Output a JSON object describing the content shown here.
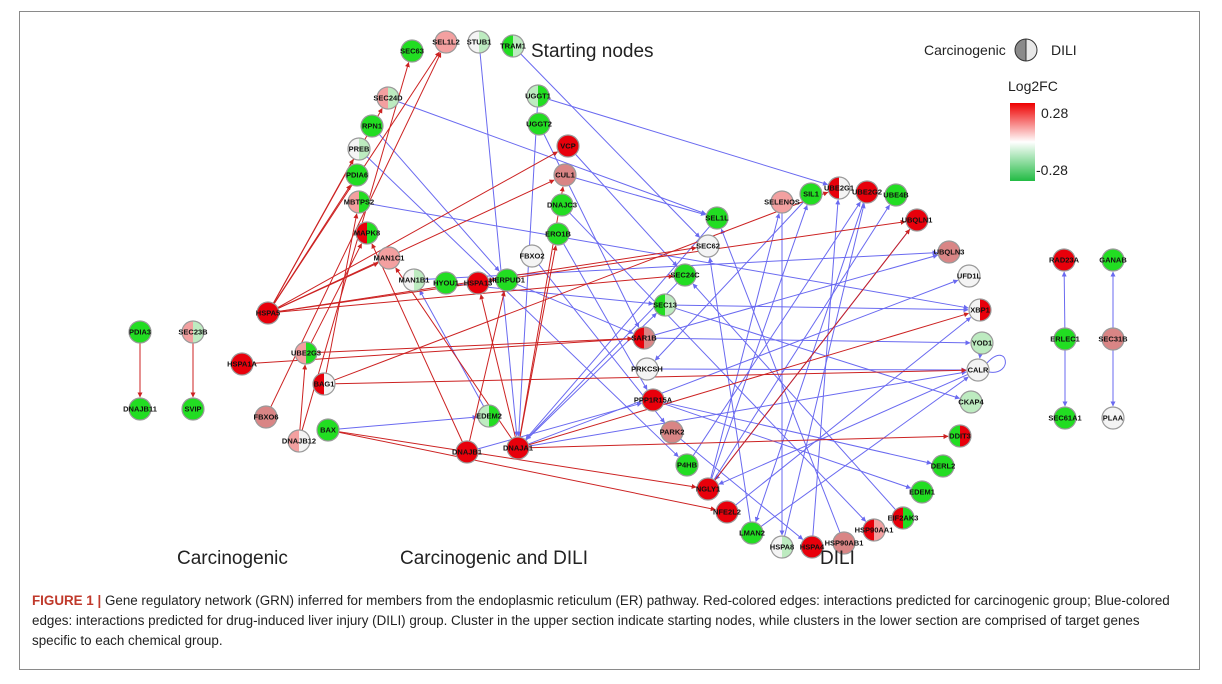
{
  "titles": {
    "starting": "Starting nodes",
    "carcinogenic": "Carcinogenic",
    "both": "Carcinogenic and DILI",
    "dili": "DILI"
  },
  "legend": {
    "group_left": "Carcinogenic",
    "group_right": "DILI",
    "title": "Log2FC",
    "max": "0.28",
    "min": "-0.28"
  },
  "caption": {
    "lead": "FIGURE 1 |",
    "text": " Gene regulatory network (GRN) inferred for members from the endoplasmic reticulum (ER) pathway. Red-colored edges: interactions predicted for carcinogenic group; Blue-colored edges: interactions predicted for drug-induced liver injury (DILI) group. Cluster in the upper section indicate starting nodes, while clusters in the lower section are comprised of target genes specific to each chemical group."
  },
  "colors": {
    "red": "#e8000b",
    "lightred": "#f3a0a0",
    "pink": "#d98585",
    "green": "#22dd22",
    "lightgreen": "#bdebc0",
    "white": "#f4f4f4",
    "carcinogenic_edge": "#cc2222",
    "dili_edge": "#6a6af0"
  },
  "nodes": [
    {
      "id": "SEC63",
      "left": "green",
      "right": "green"
    },
    {
      "id": "SEL1L2",
      "left": "lightred",
      "right": "lightred"
    },
    {
      "id": "STUB1",
      "left": "white",
      "right": "lightgreen"
    },
    {
      "id": "TRAM1",
      "left": "green",
      "right": "lightgreen"
    },
    {
      "id": "SEC24D",
      "left": "lightred",
      "right": "lightgreen"
    },
    {
      "id": "UGGT1",
      "left": "lightgreen",
      "right": "green"
    },
    {
      "id": "RPN1",
      "left": "green",
      "right": "green"
    },
    {
      "id": "UGGT2",
      "left": "green",
      "right": "green"
    },
    {
      "id": "PREB",
      "left": "white",
      "right": "lightgreen"
    },
    {
      "id": "VCP",
      "left": "red",
      "right": "red"
    },
    {
      "id": "PDIA6",
      "left": "green",
      "right": "green"
    },
    {
      "id": "CUL1",
      "left": "pink",
      "right": "pink"
    },
    {
      "id": "MBTPS2",
      "left": "lightred",
      "right": "green"
    },
    {
      "id": "DNAJC3",
      "left": "green",
      "right": "green"
    },
    {
      "id": "MAPK8",
      "left": "red",
      "right": "green"
    },
    {
      "id": "ERO1B",
      "left": "green",
      "right": "green"
    },
    {
      "id": "FBXO2",
      "left": "white",
      "right": "white"
    },
    {
      "id": "MAN1C1",
      "left": "lightred",
      "right": "lightred"
    },
    {
      "id": "MAN1B1",
      "left": "white",
      "right": "lightgreen"
    },
    {
      "id": "HYOU1",
      "left": "green",
      "right": "green"
    },
    {
      "id": "HSPA13",
      "left": "red",
      "right": "red"
    },
    {
      "id": "HERPUD1",
      "left": "green",
      "right": "green"
    },
    {
      "id": "HSPA5",
      "left": "red",
      "right": "red"
    },
    {
      "id": "UBE2G3",
      "left": "lightred",
      "right": "green"
    },
    {
      "id": "HSPA1A",
      "left": "red",
      "right": "red"
    },
    {
      "id": "BAG1",
      "left": "red",
      "right": "white"
    },
    {
      "id": "FBXO6",
      "left": "pink",
      "right": "pink"
    },
    {
      "id": "DNAJB12",
      "left": "lightred",
      "right": "white"
    },
    {
      "id": "BAX",
      "left": "green",
      "right": "green"
    },
    {
      "id": "EDEM2",
      "left": "lightgreen",
      "right": "green"
    },
    {
      "id": "DNAJB1",
      "left": "red",
      "right": "red"
    },
    {
      "id": "DNAJA1",
      "left": "red",
      "right": "red"
    },
    {
      "id": "PDIA3",
      "left": "green",
      "right": "green"
    },
    {
      "id": "DNAJB11",
      "left": "green",
      "right": "green"
    },
    {
      "id": "SEC23B",
      "left": "lightred",
      "right": "lightgreen"
    },
    {
      "id": "SVIP",
      "left": "green",
      "right": "green"
    },
    {
      "id": "SELENOS",
      "left": "lightred",
      "right": "lightred"
    },
    {
      "id": "SIL1",
      "left": "green",
      "right": "green"
    },
    {
      "id": "UBE2G1",
      "left": "red",
      "right": "white"
    },
    {
      "id": "UBE2G2",
      "left": "red",
      "right": "red"
    },
    {
      "id": "UBE4B",
      "left": "green",
      "right": "green"
    },
    {
      "id": "UBQLN1",
      "left": "red",
      "right": "red"
    },
    {
      "id": "SEL1L",
      "left": "green",
      "right": "green"
    },
    {
      "id": "SEC62",
      "left": "white",
      "right": "white"
    },
    {
      "id": "UBQLN3",
      "left": "pink",
      "right": "pink"
    },
    {
      "id": "SEC24C",
      "left": "green",
      "right": "green"
    },
    {
      "id": "UFD1L",
      "left": "white",
      "right": "white"
    },
    {
      "id": "SEC13",
      "left": "green",
      "right": "lightgreen"
    },
    {
      "id": "XBP1",
      "left": "white",
      "right": "red"
    },
    {
      "id": "SAR1B",
      "left": "red",
      "right": "pink"
    },
    {
      "id": "YOD1",
      "left": "lightgreen",
      "right": "lightgreen"
    },
    {
      "id": "PRKCSH",
      "left": "white",
      "right": "white"
    },
    {
      "id": "CALR",
      "left": "white",
      "right": "white"
    },
    {
      "id": "PPP1R15A",
      "left": "red",
      "right": "red"
    },
    {
      "id": "CKAP4",
      "left": "lightgreen",
      "right": "lightgreen"
    },
    {
      "id": "PARK2",
      "left": "pink",
      "right": "pink"
    },
    {
      "id": "DDIT3",
      "left": "green",
      "right": "red"
    },
    {
      "id": "P4HB",
      "left": "green",
      "right": "green"
    },
    {
      "id": "DERL2",
      "left": "green",
      "right": "green"
    },
    {
      "id": "NGLY1",
      "left": "red",
      "right": "red"
    },
    {
      "id": "EDEM1",
      "left": "green",
      "right": "green"
    },
    {
      "id": "NFE2L2",
      "left": "red",
      "right": "red"
    },
    {
      "id": "EIF2AK3",
      "left": "red",
      "right": "green"
    },
    {
      "id": "LMAN2",
      "left": "green",
      "right": "green"
    },
    {
      "id": "HSP90AA1",
      "left": "red",
      "right": "lightred"
    },
    {
      "id": "HSPA8",
      "left": "white",
      "right": "lightgreen"
    },
    {
      "id": "HSPA4",
      "left": "red",
      "right": "red"
    },
    {
      "id": "HSP90AB1",
      "left": "pink",
      "right": "pink"
    },
    {
      "id": "RAD23A",
      "left": "red",
      "right": "red"
    },
    {
      "id": "GANAB",
      "left": "green",
      "right": "green"
    },
    {
      "id": "ERLEC1",
      "left": "green",
      "right": "green"
    },
    {
      "id": "SEC31B",
      "left": "pink",
      "right": "pink"
    },
    {
      "id": "SEC61A1",
      "left": "green",
      "right": "green"
    },
    {
      "id": "PLAA",
      "left": "white",
      "right": "white"
    }
  ],
  "edges_carcinogenic": [
    [
      "PDIA3",
      "DNAJB11"
    ],
    [
      "SEC23B",
      "SVIP"
    ],
    [
      "HSPA5",
      "SEL1L2"
    ],
    [
      "HSPA5",
      "CUL1"
    ],
    [
      "HSPA5",
      "VCP"
    ],
    [
      "HSPA5",
      "PREB"
    ],
    [
      "HSPA5",
      "PDIA6"
    ],
    [
      "HSPA5",
      "MAN1C1"
    ],
    [
      "HSPA5",
      "SEC24D"
    ],
    [
      "HSPA5",
      "UBQLN1"
    ],
    [
      "HSPA5",
      "SEC62"
    ],
    [
      "HSPA5",
      "SEC24C"
    ],
    [
      "UBE2G3",
      "MAPK8"
    ],
    [
      "UBE2G3",
      "SAR1B"
    ],
    [
      "BAG1",
      "MBTPS2"
    ],
    [
      "BAG1",
      "CALR"
    ],
    [
      "BAG1",
      "UBE2G1"
    ],
    [
      "DNAJB12",
      "SEC63"
    ],
    [
      "BAX",
      "NFE2L2"
    ],
    [
      "BAX",
      "NGLY1"
    ],
    [
      "DNAJA1",
      "MAN1C1"
    ],
    [
      "DNAJA1",
      "HSPA13"
    ],
    [
      "DNAJA1",
      "ERO1B"
    ],
    [
      "DNAJA1",
      "XBP1"
    ],
    [
      "DNAJA1",
      "DDIT3"
    ],
    [
      "DNAJB1",
      "MAPK8"
    ],
    [
      "DNAJB1",
      "HERPUD1"
    ],
    [
      "HSPA1A",
      "SAR1B"
    ],
    [
      "FBXO6",
      "SEL1L2"
    ],
    [
      "DNAJB12",
      "UBE2G3"
    ],
    [
      "DNAJA1",
      "CUL1"
    ],
    [
      "NGLY1",
      "UBQLN1"
    ]
  ],
  "edges_dili": [
    [
      "STUB1",
      "DNAJA1"
    ],
    [
      "UGGT1",
      "UBE2G1"
    ],
    [
      "TRAM1",
      "SEC62"
    ],
    [
      "UGGT2",
      "SAR1B"
    ],
    [
      "DNAJC3",
      "HSP90AA1"
    ],
    [
      "SEL1L",
      "DNAJA1"
    ],
    [
      "SEC24C",
      "DNAJA1"
    ],
    [
      "SEC13",
      "XBP1"
    ],
    [
      "SEC13",
      "CKAP4"
    ],
    [
      "SAR1B",
      "UBQLN3"
    ],
    [
      "SAR1B",
      "YOD1"
    ],
    [
      "PRKCSH",
      "CALR"
    ],
    [
      "PPP1R15A",
      "DERL2"
    ],
    [
      "PPP1R15A",
      "EDEM1"
    ],
    [
      "PARK2",
      "HSPA4"
    ],
    [
      "P4HB",
      "UBE2G2"
    ],
    [
      "NGLY1",
      "SIL1"
    ],
    [
      "NGLY1",
      "UBE4B"
    ],
    [
      "NGLY1",
      "SELENOS"
    ],
    [
      "NFE2L2",
      "XBP1"
    ],
    [
      "LMAN2",
      "CALR"
    ],
    [
      "LMAN2",
      "SEC62"
    ],
    [
      "HSPA8",
      "UBE2G2"
    ],
    [
      "HSP90AB1",
      "SEL1L"
    ],
    [
      "EIF2AK3",
      "SEC24C"
    ],
    [
      "DNAJA1",
      "UFD1L"
    ],
    [
      "BAX",
      "EDEM2"
    ],
    [
      "EDEM2",
      "MAN1B1"
    ],
    [
      "HYOU1",
      "SEC13"
    ],
    [
      "HERPUD1",
      "SAR1B"
    ],
    [
      "MAN1B1",
      "UBQLN3"
    ],
    [
      "MBTPS2",
      "XBP1"
    ],
    [
      "PREB",
      "P4HB"
    ],
    [
      "RPN1",
      "HERPUD1"
    ],
    [
      "FBXO2",
      "PARK2"
    ],
    [
      "ERO1B",
      "PPP1R15A"
    ],
    [
      "ERLEC1",
      "RAD23A"
    ],
    [
      "ERLEC1",
      "SEC61A1"
    ],
    [
      "SEC31B",
      "GANAB"
    ],
    [
      "SEC31B",
      "PLAA"
    ],
    [
      "YOD1",
      "CALR"
    ],
    [
      "CALR",
      "NGLY1"
    ],
    [
      "DNAJA1",
      "CALR"
    ],
    [
      "HSPA4",
      "UBE2G1"
    ],
    [
      "UBE2G2",
      "LMAN2"
    ],
    [
      "UBQLN1",
      "NGLY1"
    ],
    [
      "SELENOS",
      "HSPA8"
    ],
    [
      "SIL1",
      "PRKCSH"
    ],
    [
      "CUL1",
      "SEL1L"
    ],
    [
      "VCP",
      "SEC24C"
    ],
    [
      "UGGT1",
      "DNAJA1"
    ],
    [
      "SEC24D",
      "SEL1L"
    ],
    [
      "DNAJB1",
      "PPP1R15A"
    ],
    [
      "DNAJA1",
      "SEC13"
    ]
  ]
}
